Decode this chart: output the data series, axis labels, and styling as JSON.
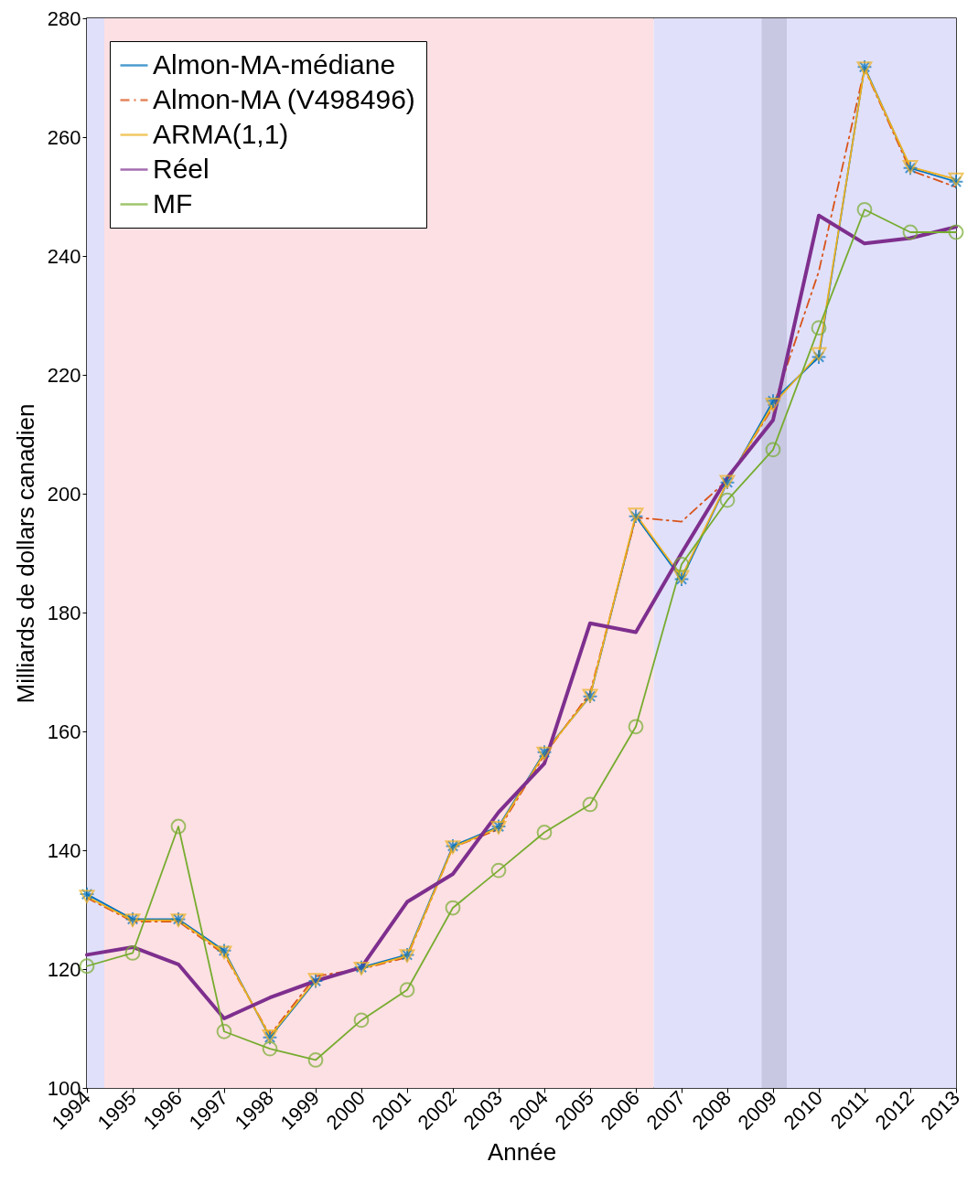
{
  "chart_data": {
    "type": "line",
    "xlabel": "Année",
    "ylabel": "Milliards de dollars canadien",
    "x": [
      1994,
      1995,
      1996,
      1997,
      1998,
      1999,
      2000,
      2001,
      2002,
      2003,
      2004,
      2005,
      2006,
      2007,
      2008,
      2009,
      2010,
      2011,
      2012,
      2013
    ],
    "xlim": [
      1994,
      2013
    ],
    "xticks": [
      1994,
      1995,
      1996,
      1997,
      1998,
      1999,
      2000,
      2001,
      2002,
      2003,
      2004,
      2005,
      2006,
      2007,
      2008,
      2009,
      2010,
      2011,
      2012,
      2013
    ],
    "ylim": [
      100,
      280
    ],
    "yticks": [
      100,
      120,
      140,
      160,
      180,
      200,
      220,
      240,
      260,
      280
    ],
    "grid": false,
    "legend": "top left",
    "bands": [
      {
        "axis": "x",
        "from": 1994,
        "to": 1994.38,
        "color": "#e0e0fa"
      },
      {
        "axis": "x",
        "from": 1994.38,
        "to": 2006.39,
        "color": "#fde0e3"
      },
      {
        "axis": "x",
        "from": 2006.39,
        "to": 2013,
        "color": "#e0e0fa"
      },
      {
        "axis": "x",
        "from": 2008.75,
        "to": 2009.3,
        "color": "#c8c8e3"
      }
    ],
    "series": [
      {
        "name": "Almon-MA-médiane",
        "color": "#0072bd",
        "marker": "cross",
        "line_style": "solid",
        "values": [
          132.6,
          128.4,
          128.4,
          123.1,
          108.5,
          118.0,
          120.3,
          122.4,
          140.7,
          144.0,
          156.5,
          165.9,
          196.2,
          185.6,
          201.9,
          215.6,
          223.0,
          271.8,
          254.8,
          252.5
        ]
      },
      {
        "name": "Almon-MA (V498496)",
        "color": "#d95319",
        "marker": "none",
        "line_style": "dashed",
        "values": [
          132.0,
          128.0,
          128.0,
          122.5,
          108.9,
          118.8,
          120.0,
          122.0,
          140.5,
          143.5,
          156.0,
          166.5,
          196.0,
          195.3,
          202.3,
          214.6,
          237.4,
          271.5,
          254.4,
          251.6
        ]
      },
      {
        "name": "ARMA(1,1)",
        "color": "#edb120",
        "marker": "triangle",
        "line_style": "solid",
        "values": [
          132.2,
          128.2,
          128.2,
          122.8,
          108.7,
          118.2,
          120.1,
          122.2,
          140.5,
          143.8,
          156.3,
          166.0,
          196.5,
          186.0,
          202.0,
          215.0,
          223.5,
          271.6,
          255.0,
          252.9
        ]
      },
      {
        "name": "Réel",
        "color": "#7e2f8e",
        "marker": "none",
        "line_style": "solid",
        "values": [
          122.4,
          123.7,
          120.8,
          111.7,
          115.2,
          118.0,
          120.3,
          131.3,
          136.0,
          146.4,
          154.6,
          178.2,
          176.7,
          190.0,
          202.7,
          212.4,
          246.8,
          242.1,
          243.0,
          244.9
        ]
      },
      {
        "name": "MF",
        "color": "#77ac30",
        "marker": "circle",
        "line_style": "solid",
        "values": [
          120.5,
          122.7,
          144.0,
          109.5,
          106.6,
          104.7,
          111.4,
          116.5,
          130.3,
          136.6,
          143.0,
          147.7,
          160.8,
          188.1,
          198.9,
          207.4,
          227.9,
          247.8,
          244.0,
          244.0
        ]
      }
    ]
  }
}
